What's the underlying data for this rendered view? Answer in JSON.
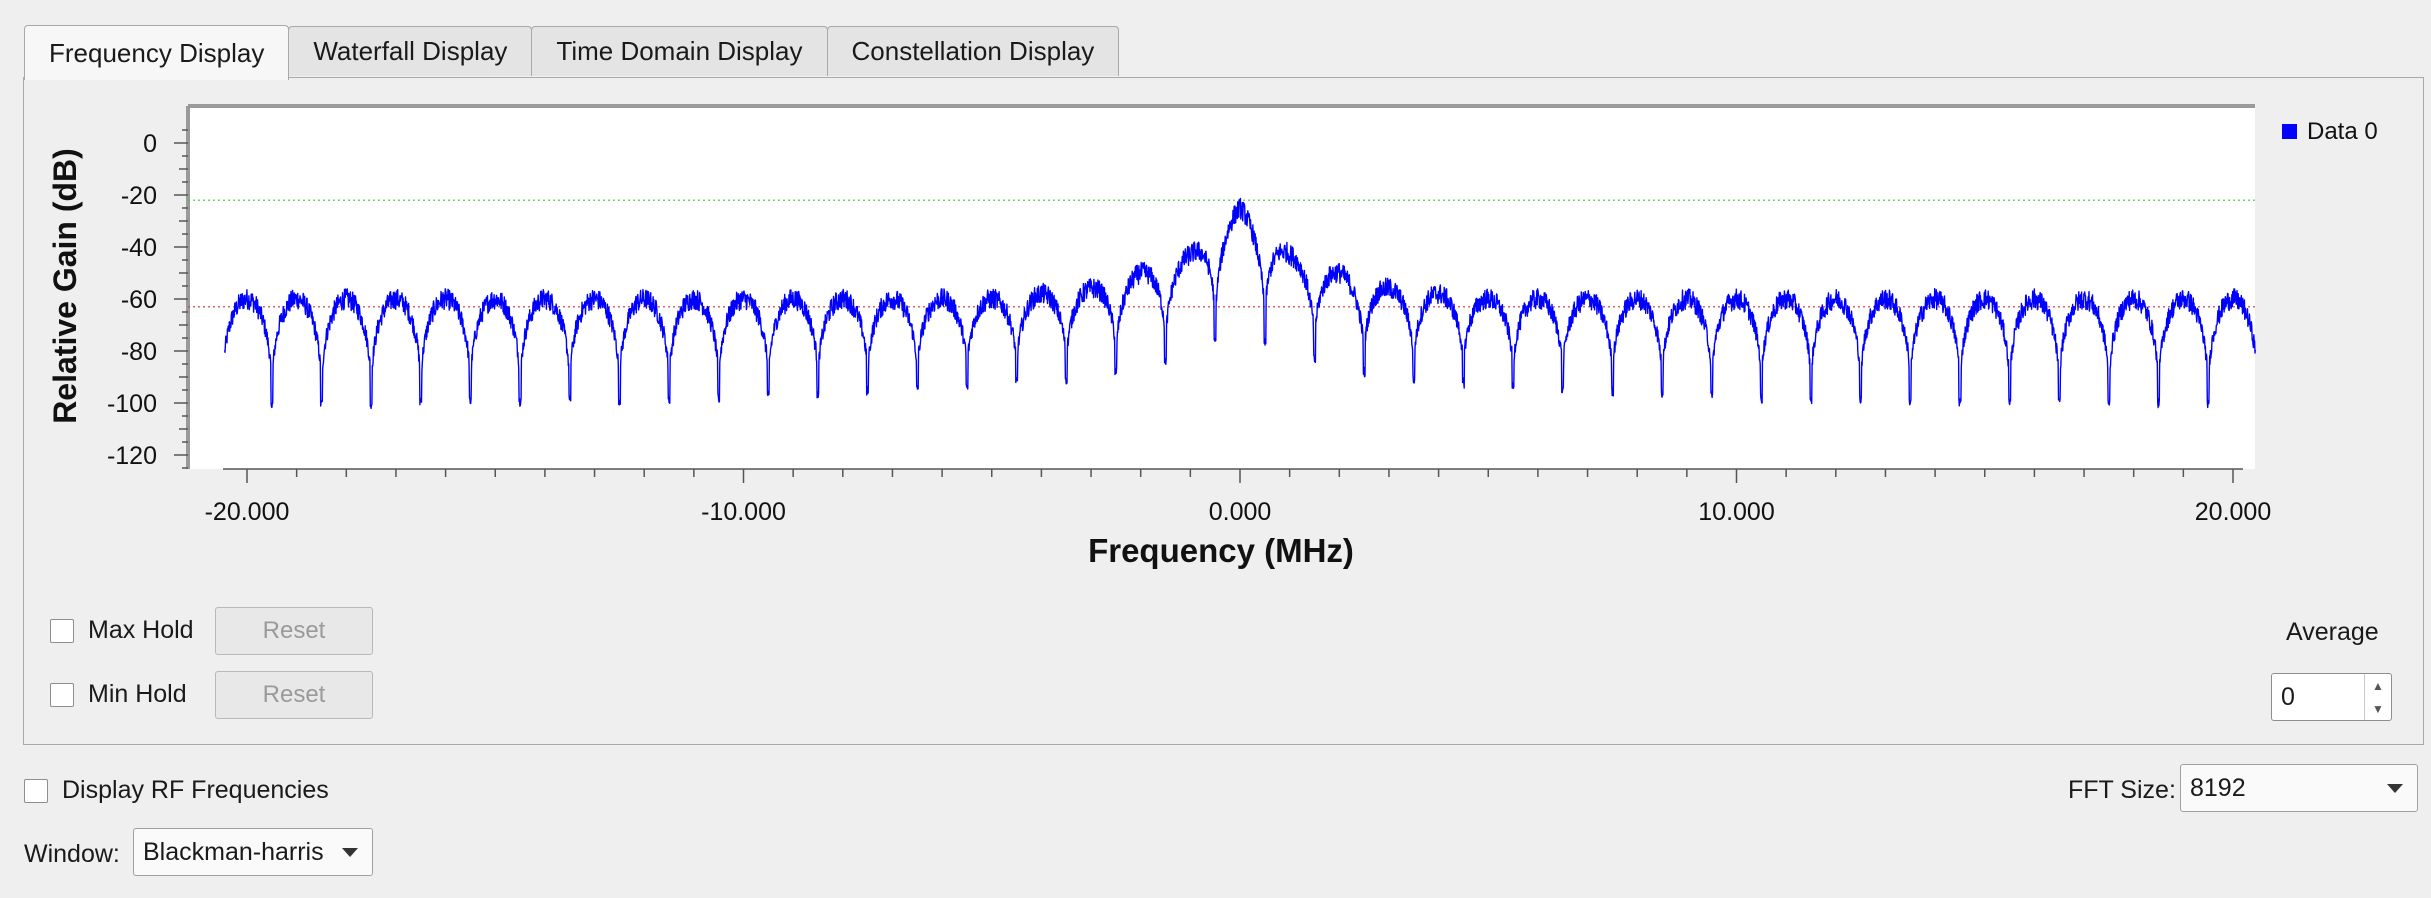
{
  "tabs": [
    {
      "label": "Frequency Display",
      "active": true
    },
    {
      "label": "Waterfall Display",
      "active": false
    },
    {
      "label": "Time Domain Display",
      "active": false
    },
    {
      "label": "Constellation Display",
      "active": false
    }
  ],
  "plot": {
    "legend": "Data 0",
    "legend_color": "#0000ff"
  },
  "chart_data": {
    "type": "line",
    "title": "",
    "xlabel": "Frequency (MHz)",
    "ylabel": "Relative Gain (dB)",
    "xlim": [
      -20.5,
      20.5
    ],
    "ylim": [
      -125,
      10
    ],
    "x_ticks": [
      -20,
      -10,
      0,
      10,
      20
    ],
    "x_tick_labels": [
      "-20.000",
      "-10.000",
      "0.000",
      "10.000",
      "20.000"
    ],
    "y_ticks": [
      0,
      -20,
      -40,
      -60,
      -80,
      -100,
      -120
    ],
    "y_tick_labels": [
      "0",
      "-20",
      "-40",
      "-60",
      "-80",
      "-100",
      "-120"
    ],
    "max_marker_db": -22,
    "min_marker_db": -63,
    "series": [
      {
        "name": "Data 0",
        "color": "#0000ff",
        "lobe_spacing_mhz": 1.0,
        "envelope_x": [
          -20.5,
          -10,
          -5,
          -3,
          -2,
          -1,
          -0.5,
          0,
          0.5,
          1,
          2,
          3,
          5,
          10,
          20.5
        ],
        "envelope_peak_db": [
          -60,
          -60,
          -60,
          -56,
          -50,
          -43,
          -33,
          -25,
          -33,
          -43,
          -50,
          -56,
          -60,
          -60,
          -60
        ],
        "null_depth_db": [
          -103,
          -100,
          -95,
          -92,
          -88,
          -83,
          -78,
          -75,
          -78,
          -83,
          -88,
          -92,
          -95,
          -100,
          -103
        ]
      }
    ]
  },
  "controls": {
    "max_hold": {
      "label": "Max Hold",
      "checked": false
    },
    "min_hold": {
      "label": "Min Hold",
      "checked": false
    },
    "reset1": "Reset",
    "reset2": "Reset",
    "average_label": "Average",
    "average_value": "0"
  },
  "bottom": {
    "display_rf_label": "Display RF Frequencies",
    "fft_label": "FFT Size:",
    "fft_value": "8192",
    "window_label": "Window:",
    "window_value": "Blackman-harris"
  }
}
